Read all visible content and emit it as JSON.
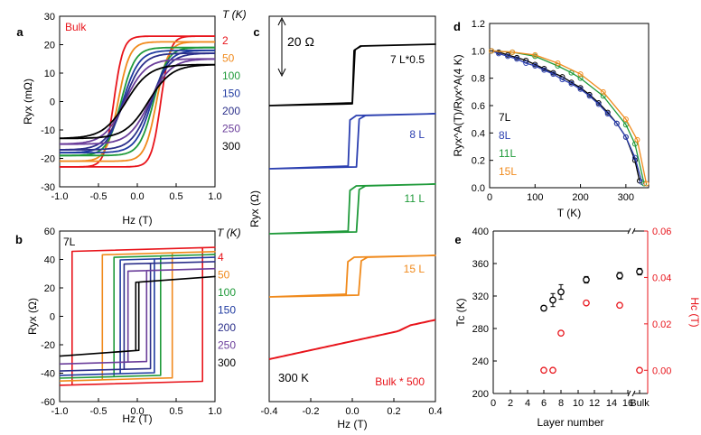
{
  "chart_data": [
    {
      "panel": "a",
      "type": "line",
      "corner_label": "Bulk",
      "legend_title": "T (K)",
      "legend_entries": [
        "2",
        "50",
        "100",
        "150",
        "200",
        "250",
        "300"
      ],
      "legend_colors": [
        "#e8141b",
        "#f08a1c",
        "#1f9a3a",
        "#1f3aa0",
        "#2b2f8a",
        "#6a3d9a",
        "#000000"
      ],
      "xlabel": "Hz (T)",
      "ylabel": "Ryx (mΩ)",
      "xlim": [
        -1.0,
        1.0
      ],
      "ylim": [
        -30,
        30
      ],
      "xticks": [
        "-1.0",
        "-0.5",
        "0.0",
        "0.5",
        "1.0"
      ],
      "yticks": [
        "-30",
        "-20",
        "-10",
        "0",
        "10",
        "20",
        "30"
      ],
      "series": [
        {
          "name": "2",
          "saturation": 23,
          "coercive_field": 0.55
        },
        {
          "name": "50",
          "saturation": 21,
          "coercive_field": 0.45
        },
        {
          "name": "100",
          "saturation": 19,
          "coercive_field": 0.38
        },
        {
          "name": "150",
          "saturation": 18,
          "coercive_field": 0.34
        },
        {
          "name": "200",
          "saturation": 17,
          "coercive_field": 0.31
        },
        {
          "name": "250",
          "saturation": 15,
          "coercive_field": 0.29
        },
        {
          "name": "300",
          "saturation": 13,
          "coercive_field": 0.26
        }
      ]
    },
    {
      "panel": "b",
      "type": "line",
      "corner_label": "7L",
      "legend_title": "T (K)",
      "legend_entries": [
        "4",
        "50",
        "100",
        "150",
        "200",
        "250",
        "300"
      ],
      "legend_colors": [
        "#e8141b",
        "#f08a1c",
        "#1f9a3a",
        "#1f3aa0",
        "#2b2f8a",
        "#6a3d9a",
        "#000000"
      ],
      "xlabel": "Hz (T)",
      "ylabel": "Ryx (Ω)",
      "xlim": [
        -1.0,
        1.0
      ],
      "ylim": [
        -60,
        60
      ],
      "xticks": [
        "-1.0",
        "-0.5",
        "0.0",
        "0.5",
        "1.0"
      ],
      "yticks": [
        "-60",
        "-40",
        "-20",
        "0",
        "20",
        "40",
        "60"
      ],
      "series": [
        {
          "name": "4",
          "saturation": 47,
          "coercive_field": 0.84
        },
        {
          "name": "50",
          "saturation": 44,
          "coercive_field": 0.45
        },
        {
          "name": "100",
          "saturation": 42,
          "coercive_field": 0.3
        },
        {
          "name": "150",
          "saturation": 40,
          "coercive_field": 0.22
        },
        {
          "name": "200",
          "saturation": 37,
          "coercive_field": 0.17
        },
        {
          "name": "250",
          "saturation": 32,
          "coercive_field": 0.12
        },
        {
          "name": "300",
          "saturation": 24,
          "coercive_field": 0.02
        }
      ]
    },
    {
      "panel": "c",
      "type": "line",
      "scale_bar_label": "20 Ω",
      "bottom_label": "300 K",
      "xlabel": "Hz (T)",
      "ylabel": "Ryx (Ω)",
      "xlim": [
        -0.4,
        0.4
      ],
      "xticks": [
        "-0.4",
        "-0.2",
        "0.0",
        "0.2",
        "0.4"
      ],
      "series": [
        {
          "name": "7 L*0.5",
          "color": "#000000",
          "coercive_field": 0.0
        },
        {
          "name": "8 L",
          "color": "#2b3fb0",
          "coercive_field": 0.02
        },
        {
          "name": "11 L",
          "color": "#1f9a3a",
          "coercive_field": 0.02
        },
        {
          "name": "15 L",
          "color": "#f08a1c",
          "coercive_field": 0.03
        },
        {
          "name": "Bulk * 500",
          "color": "#e8141b",
          "coercive_field": 0.0
        }
      ]
    },
    {
      "panel": "d",
      "type": "line",
      "xlabel": "T (K)",
      "ylabel": "Ryx^A(T)/Ryx^A(4 K)",
      "xlim": [
        0,
        350
      ],
      "ylim": [
        0.0,
        1.2
      ],
      "xticks": [
        "0",
        "100",
        "200",
        "300"
      ],
      "yticks": [
        "0.0",
        "0.2",
        "0.4",
        "0.6",
        "0.8",
        "1.0",
        "1.2"
      ],
      "series": [
        {
          "name": "7L",
          "color": "#000000",
          "x": [
            4,
            20,
            40,
            60,
            80,
            100,
            120,
            140,
            160,
            180,
            200,
            220,
            240,
            260,
            280,
            300,
            320,
            330
          ],
          "y": [
            1.0,
            0.99,
            0.97,
            0.95,
            0.93,
            0.9,
            0.87,
            0.84,
            0.81,
            0.77,
            0.73,
            0.68,
            0.62,
            0.55,
            0.47,
            0.37,
            0.2,
            0.05
          ]
        },
        {
          "name": "8L",
          "color": "#2b3fb0",
          "x": [
            4,
            20,
            40,
            60,
            80,
            100,
            120,
            140,
            160,
            180,
            200,
            220,
            240,
            260,
            280,
            300,
            320,
            335
          ],
          "y": [
            1.0,
            0.98,
            0.96,
            0.94,
            0.91,
            0.89,
            0.86,
            0.83,
            0.79,
            0.76,
            0.72,
            0.67,
            0.61,
            0.54,
            0.47,
            0.37,
            0.22,
            0.04
          ]
        },
        {
          "name": "11L",
          "color": "#1f9a3a",
          "x": [
            4,
            50,
            100,
            150,
            180,
            200,
            250,
            300,
            320,
            340
          ],
          "y": [
            1.0,
            0.99,
            0.96,
            0.89,
            0.84,
            0.8,
            0.67,
            0.46,
            0.32,
            0.03
          ]
        },
        {
          "name": "15L",
          "color": "#f08a1c",
          "x": [
            4,
            50,
            100,
            150,
            200,
            250,
            300,
            325,
            345
          ],
          "y": [
            1.0,
            0.99,
            0.97,
            0.91,
            0.83,
            0.7,
            0.5,
            0.35,
            0.03
          ]
        }
      ]
    },
    {
      "panel": "e",
      "type": "scatter",
      "xlabel": "Layer number",
      "ylabel_left": "Tc (K)",
      "ylabel_right": "Hc (T)",
      "xticks": [
        "0",
        "2",
        "4",
        "6",
        "8",
        "10",
        "12",
        "14",
        "16",
        "Bulk"
      ],
      "ylim_left": [
        200,
        400
      ],
      "yticks_left": [
        "200",
        "240",
        "280",
        "320",
        "360",
        "400"
      ],
      "ylim_right": [
        -0.01,
        0.06
      ],
      "yticks_right": [
        "0.00",
        "0.02",
        "0.04",
        "0.06"
      ],
      "series": [
        {
          "name": "Tc",
          "color": "#000000",
          "x": [
            "6",
            "7",
            "8",
            "11",
            "15",
            "Bulk"
          ],
          "y": [
            305,
            315,
            325,
            340,
            345,
            350
          ],
          "err": [
            3,
            8,
            9,
            4,
            4,
            4
          ]
        },
        {
          "name": "Hc",
          "color": "#e8141b",
          "x": [
            "6",
            "7",
            "8",
            "11",
            "15",
            "Bulk"
          ],
          "y": [
            0.0,
            0.0,
            0.016,
            0.029,
            0.028,
            0.0
          ]
        }
      ]
    }
  ],
  "panel_letters": [
    "a",
    "b",
    "c",
    "d",
    "e"
  ]
}
